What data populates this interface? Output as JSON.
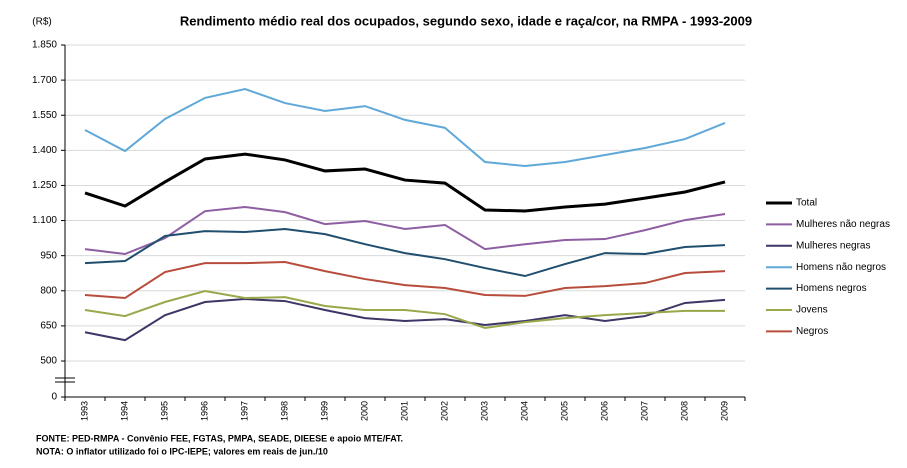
{
  "chart_data": {
    "type": "line",
    "title": "Rendimento médio real dos ocupados, segundo sexo, idade e raça/cor,  na RMPA - 1993-2009",
    "y_label": "(R$)",
    "categories": [
      "1993",
      "1994",
      "1995",
      "1996",
      "1997",
      "1998",
      "1999",
      "2000",
      "2001",
      "2002",
      "2003",
      "2004",
      "2005",
      "2006",
      "2007",
      "2008",
      "2009"
    ],
    "series": [
      {
        "name": "Total",
        "color": "#000000",
        "width": 3,
        "values": [
          1218,
          1162,
          1265,
          1363,
          1384,
          1359,
          1312,
          1320,
          1273,
          1260,
          1145,
          1141,
          1158,
          1170,
          1196,
          1222,
          1265
        ]
      },
      {
        "name": "Mulheres não negras",
        "color": "#8e5ea2",
        "width": 2,
        "values": [
          978,
          957,
          1025,
          1140,
          1158,
          1136,
          1085,
          1098,
          1064,
          1081,
          978,
          999,
          1017,
          1021,
          1059,
          1102,
          1128
        ]
      },
      {
        "name": "Mulheres negras",
        "color": "#3f3566",
        "width": 2,
        "values": [
          623,
          589,
          696,
          752,
          765,
          756,
          718,
          683,
          671,
          679,
          654,
          671,
          696,
          671,
          692,
          748,
          761
        ]
      },
      {
        "name": "Homens não negros",
        "color": "#5fa8d8",
        "width": 2,
        "values": [
          1487,
          1397,
          1534,
          1624,
          1662,
          1602,
          1568,
          1589,
          1530,
          1496,
          1350,
          1333,
          1350,
          1380,
          1410,
          1448,
          1517
        ]
      },
      {
        "name": "Homens negros",
        "color": "#1f4e6e",
        "width": 2,
        "values": [
          918,
          927,
          1034,
          1055,
          1051,
          1064,
          1042,
          999,
          961,
          935,
          897,
          863,
          914,
          961,
          957,
          987,
          995
        ]
      },
      {
        "name": "Jovens",
        "color": "#98a84a",
        "width": 2,
        "values": [
          718,
          692,
          752,
          799,
          769,
          773,
          735,
          718,
          718,
          700,
          641,
          666,
          683,
          696,
          705,
          714,
          714
        ]
      },
      {
        "name": "Negros",
        "color": "#b84c3c",
        "width": 2,
        "values": [
          782,
          769,
          880,
          918,
          918,
          923,
          884,
          850,
          824,
          812,
          782,
          778,
          812,
          820,
          833,
          876,
          884
        ]
      }
    ],
    "ylim": [
      0,
      1850
    ],
    "yticks": [
      0,
      500,
      650,
      800,
      950,
      {
        "value": 1100,
        "label": "1.100"
      },
      {
        "value": 1250,
        "label": "1.250"
      },
      {
        "value": 1400,
        "label": "1.400"
      },
      {
        "value": 1550,
        "label": "1.550"
      },
      {
        "value": 1700,
        "label": "1.700"
      },
      {
        "value": 1850,
        "label": "1.850"
      }
    ],
    "grid": true,
    "legend": "right",
    "notes": [
      "FONTE: PED-RMPA  - Convênio FEE, FGTAS, PMPA, SEADE, DIEESE e apoio MTE/FAT.",
      "NOTA: O inflator utilizado  foi o IPC-IEPE; valores em reais de jun./10"
    ]
  }
}
